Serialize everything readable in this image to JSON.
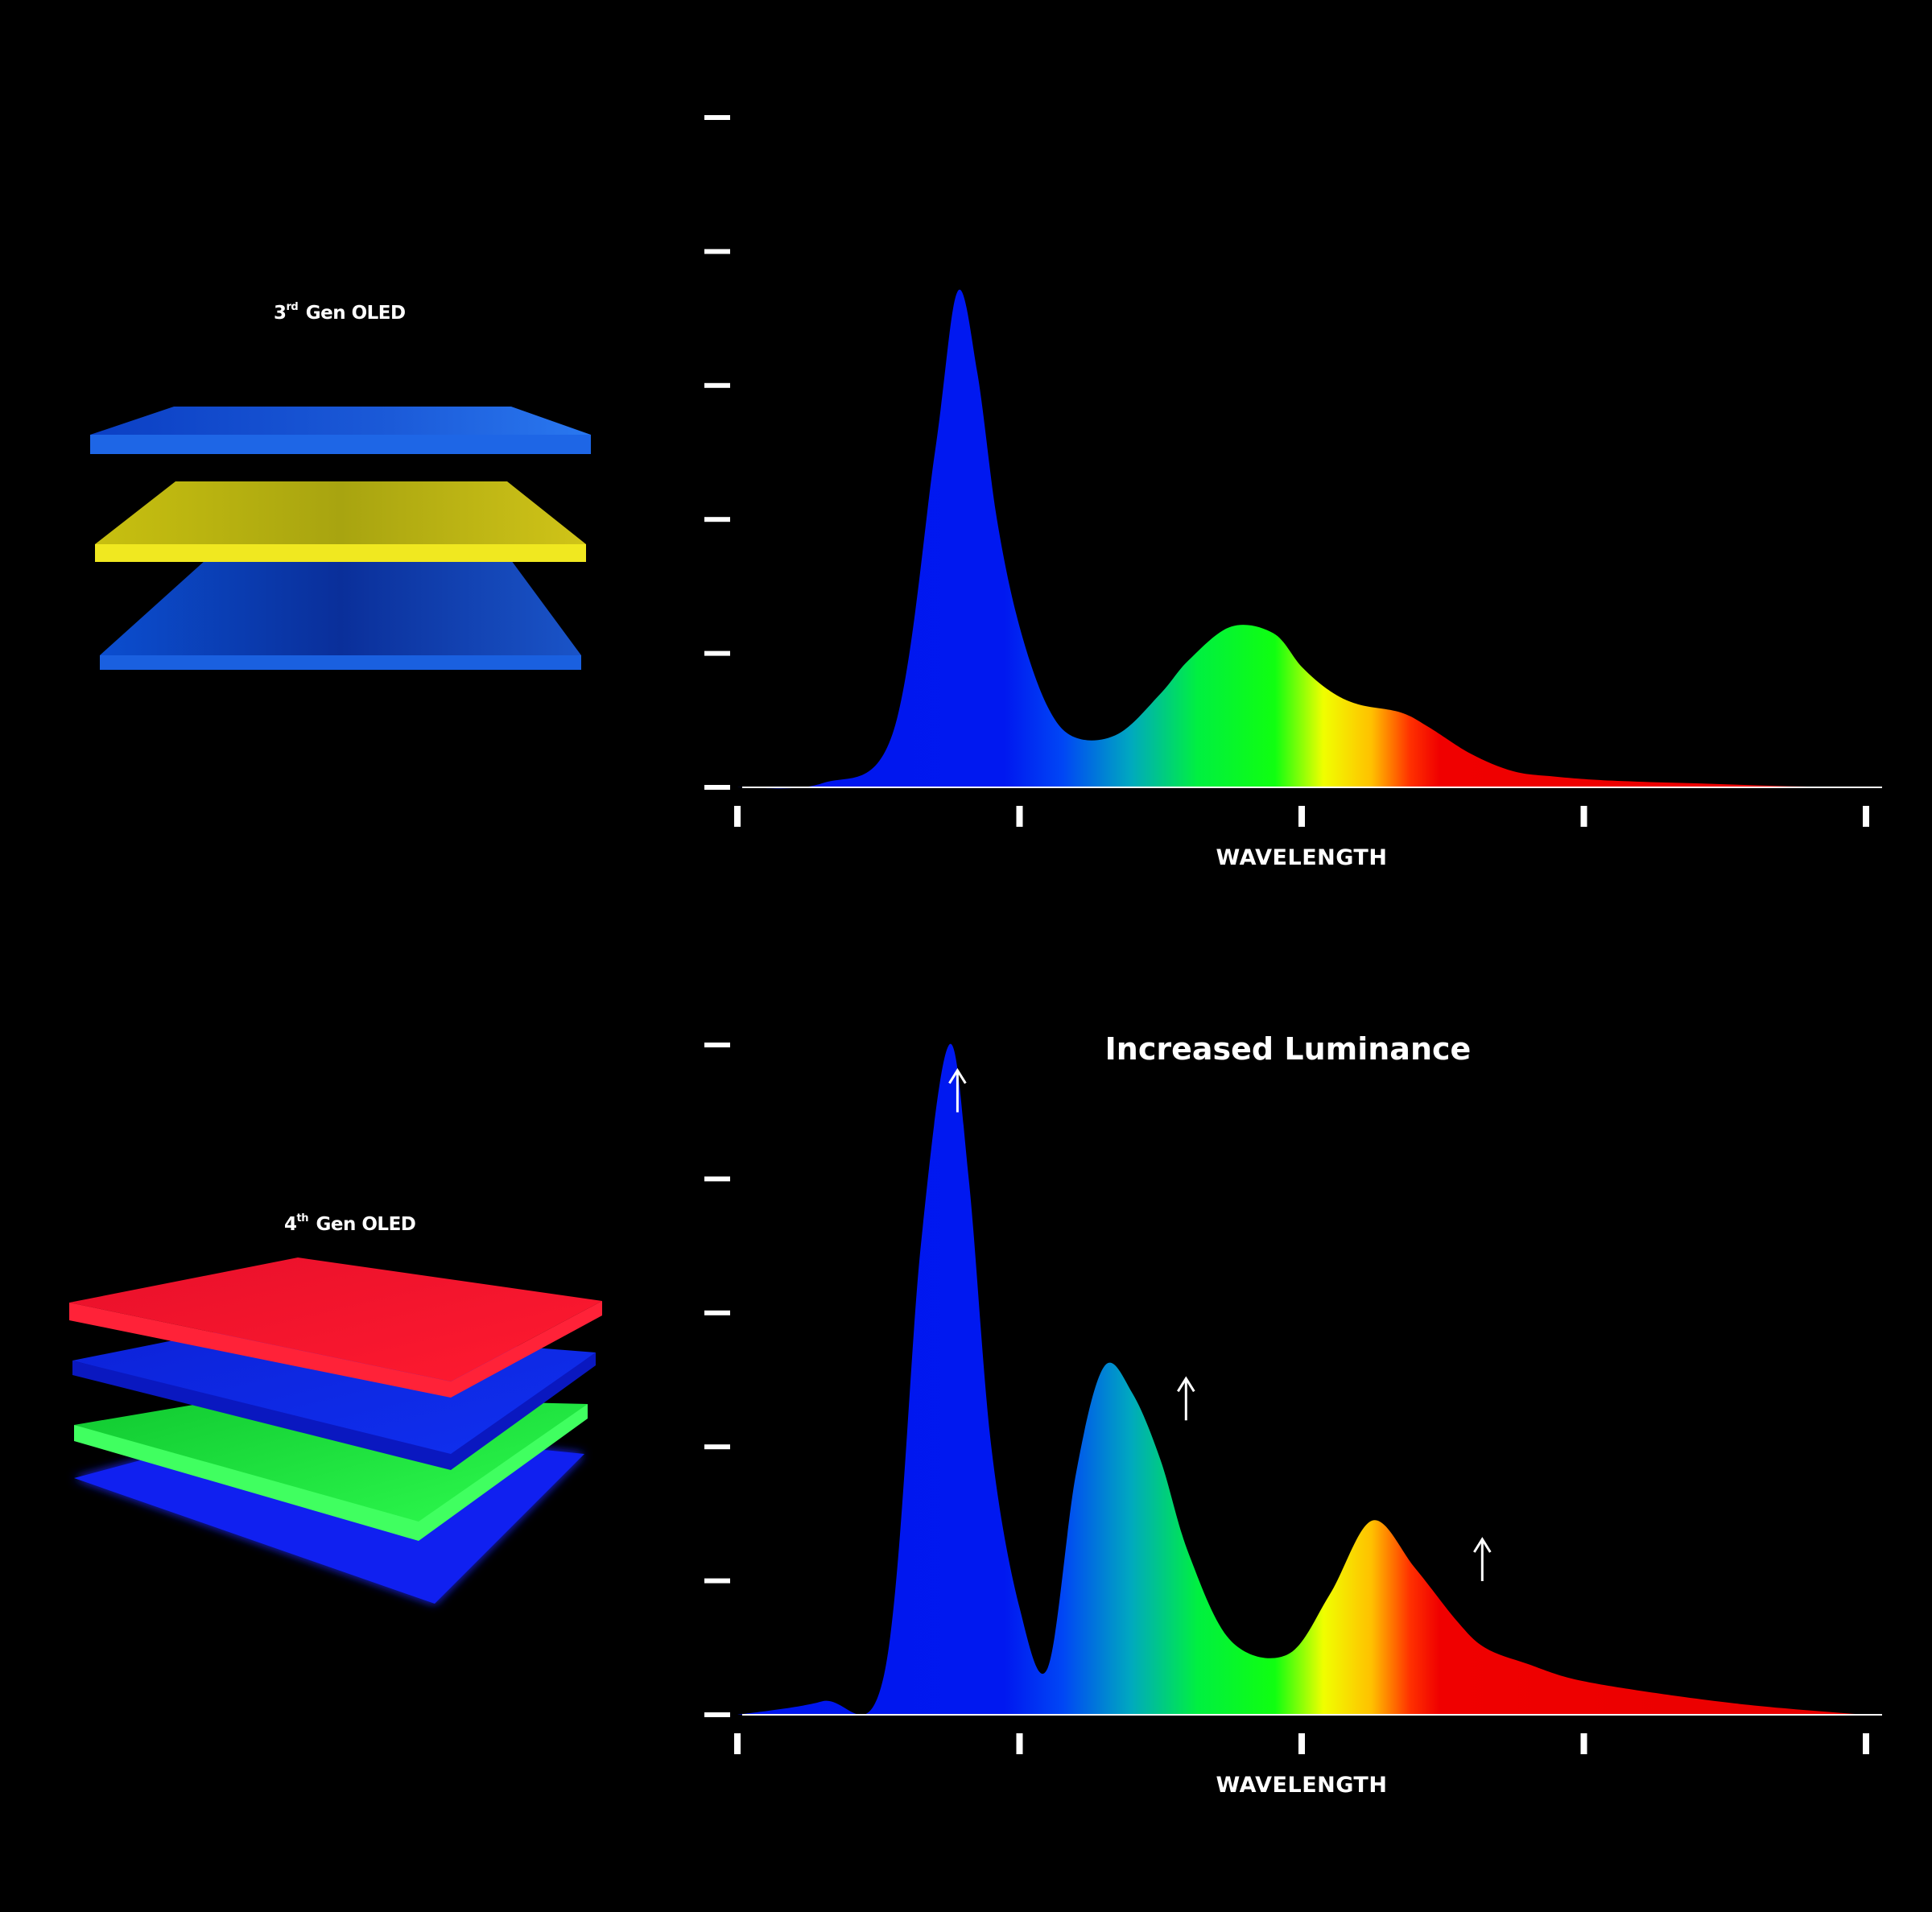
{
  "stacks": [
    {
      "title_num": "3",
      "title_sup": "rd",
      "title_rest": " Gen OLED",
      "layers": [
        "blue",
        "yellow",
        "blue"
      ],
      "colors": {
        "blue": "#1a5ad8",
        "yellow": "#d8d21a"
      }
    },
    {
      "title_num": "4",
      "title_sup": "th",
      "title_rest": " Gen OLED",
      "layers": [
        "red",
        "blue",
        "green",
        "blue"
      ],
      "colors": {
        "red": "#e8102a",
        "blue": "#1028e0",
        "green": "#18e035"
      }
    }
  ],
  "chart_data": [
    {
      "type": "area",
      "xlabel": "WAVELENGTH",
      "ylabel": "",
      "xlim": [
        0,
        4
      ],
      "ylim": [
        0,
        5
      ],
      "x_ticks": 5,
      "y_ticks": 6,
      "grid": false,
      "series": [
        {
          "x": [
            0,
            0.3,
            0.55,
            0.7,
            0.78,
            0.85,
            0.92,
            1.0,
            1.1,
            1.2,
            1.35,
            1.5,
            1.6,
            1.75,
            1.9,
            2.0,
            2.1,
            2.2,
            2.35,
            2.45,
            2.6,
            2.75,
            2.9,
            3.1,
            3.4,
            3.7,
            4.0
          ],
          "y": [
            0,
            0.03,
            0.4,
            2.5,
            3.7,
            3.1,
            2.0,
            1.2,
            0.6,
            0.37,
            0.4,
            0.7,
            0.95,
            1.2,
            1.15,
            0.9,
            0.72,
            0.62,
            0.56,
            0.45,
            0.25,
            0.12,
            0.08,
            0.05,
            0.03,
            0.01,
            0
          ]
        }
      ],
      "annotations": []
    },
    {
      "type": "area",
      "xlabel": "WAVELENGTH",
      "ylabel": "",
      "xlim": [
        0,
        4
      ],
      "ylim": [
        0,
        5
      ],
      "x_ticks": 5,
      "y_ticks": 6,
      "grid": false,
      "series": [
        {
          "x": [
            0,
            0.3,
            0.52,
            0.65,
            0.75,
            0.82,
            0.9,
            1.0,
            1.1,
            1.2,
            1.3,
            1.4,
            1.5,
            1.6,
            1.75,
            1.95,
            2.1,
            2.25,
            2.4,
            2.55,
            2.65,
            2.8,
            3.0,
            3.4,
            3.7,
            4.0
          ],
          "y": [
            0,
            0.1,
            0.3,
            3.5,
            5.0,
            4.0,
            2.0,
            0.8,
            0.35,
            1.8,
            2.6,
            2.4,
            1.9,
            1.2,
            0.55,
            0.45,
            0.9,
            1.45,
            1.1,
            0.7,
            0.5,
            0.38,
            0.25,
            0.12,
            0.05,
            0
          ]
        }
      ],
      "title": "Increased Luminance",
      "annotations": [
        {
          "x": 0.78,
          "y": 4.75,
          "symbol": "↑"
        },
        {
          "x": 1.59,
          "y": 2.45,
          "symbol": "↑"
        },
        {
          "x": 2.64,
          "y": 1.25,
          "symbol": "↑"
        }
      ]
    }
  ]
}
